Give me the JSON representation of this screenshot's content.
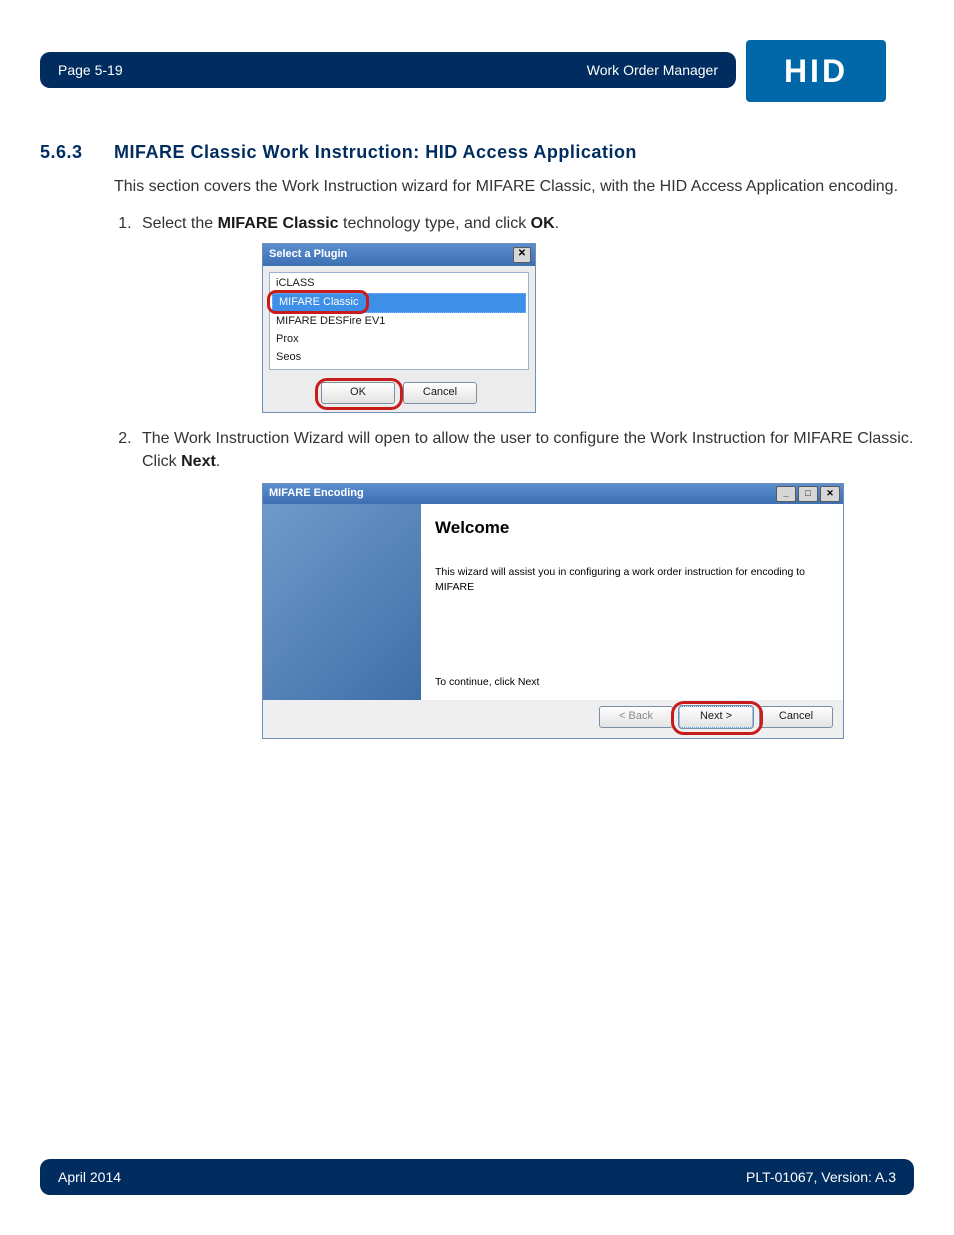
{
  "header": {
    "left": "Page 5-19",
    "right": "Work Order Manager",
    "logo_text": "HID",
    "bar_bg": "#002c5f",
    "logo_bg": "#0068a9"
  },
  "section": {
    "number": "5.6.3",
    "title": "MIFARE Classic Work Instruction: HID Access Application",
    "intro": "This section covers the Work Instruction wizard for MIFARE Classic, with the HID Access Application encoding.",
    "heading_color": "#002c5f"
  },
  "steps": {
    "s1_pre": "Select the ",
    "s1_bold1": "MIFARE Classic",
    "s1_mid": " technology type, and click ",
    "s1_bold2": "OK",
    "s1_post": ".",
    "s2_pre": "The Work Instruction Wizard will open to allow the user to configure the Work Instruction for MIFARE Classic. Click ",
    "s2_bold1": "Next",
    "s2_post": "."
  },
  "plugin_dialog": {
    "title": "Select a Plugin",
    "items": {
      "i0": "iCLASS",
      "i1": "MIFARE Classic",
      "i2": "MIFARE DESFire EV1",
      "i3": "Prox",
      "i4": "Seos"
    },
    "ok": "OK",
    "cancel": "Cancel",
    "title_bg_top": "#5b8ecf",
    "title_bg_bottom": "#3d6fb3",
    "highlight_circle_color": "#c81b1b",
    "selected_bg": "#3d8fe8"
  },
  "wizard": {
    "title": "MIFARE Encoding",
    "heading": "Welcome",
    "desc": "This wizard will assist you in configuring a work order instruction for encoding to MIFARE",
    "continue": "To continue, click Next",
    "back": "< Back",
    "next": "Next >",
    "cancel": "Cancel",
    "side_bg_top": "#6f9acb",
    "side_bg_bottom": "#3f6fa8",
    "highlight_circle_color": "#c81b1b"
  },
  "footer": {
    "left": "April 2014",
    "right": "PLT-01067, Version: A.3",
    "bar_bg": "#002c5f"
  }
}
